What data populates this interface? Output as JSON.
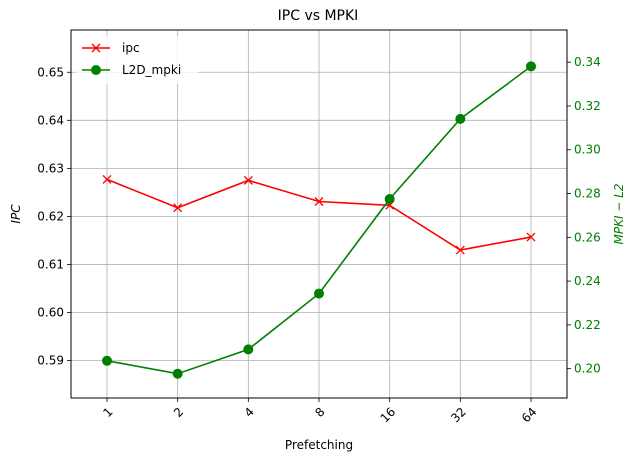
{
  "chart_data": {
    "type": "line",
    "title": "IPC vs MPKI",
    "xlabel": "Prefetching",
    "ylabel_left": "IPC",
    "ylabel_right": "MPKI − L2",
    "categories": [
      "1",
      "2",
      "4",
      "8",
      "16",
      "32",
      "64"
    ],
    "grid": true,
    "legend_position": "top-left",
    "left_axis": {
      "ylim": [
        0.5822,
        0.6588
      ],
      "ticks": [
        "0.59",
        "0.60",
        "0.61",
        "0.62",
        "0.63",
        "0.64",
        "0.65"
      ],
      "tick_values": [
        0.59,
        0.6,
        0.61,
        0.62,
        0.63,
        0.64,
        0.65
      ]
    },
    "right_axis": {
      "ylim": [
        0.1866,
        0.3547
      ],
      "ticks": [
        "0.20",
        "0.22",
        "0.24",
        "0.26",
        "0.28",
        "0.30",
        "0.32",
        "0.34"
      ],
      "tick_values": [
        0.2,
        0.22,
        0.24,
        0.26,
        0.28,
        0.3,
        0.32,
        0.34
      ],
      "color": "#008000"
    },
    "series": [
      {
        "name": "ipc",
        "axis": "left",
        "color": "#ff0000",
        "marker": "x",
        "values": [
          0.6277,
          0.6218,
          0.6275,
          0.6231,
          0.6223,
          0.613,
          0.6157
        ]
      },
      {
        "name": "L2D_mpki",
        "axis": "right",
        "color": "#008000",
        "marker": "circle",
        "values": [
          0.2036,
          0.1977,
          0.2088,
          0.2343,
          0.2775,
          0.3141,
          0.3381
        ]
      }
    ]
  }
}
